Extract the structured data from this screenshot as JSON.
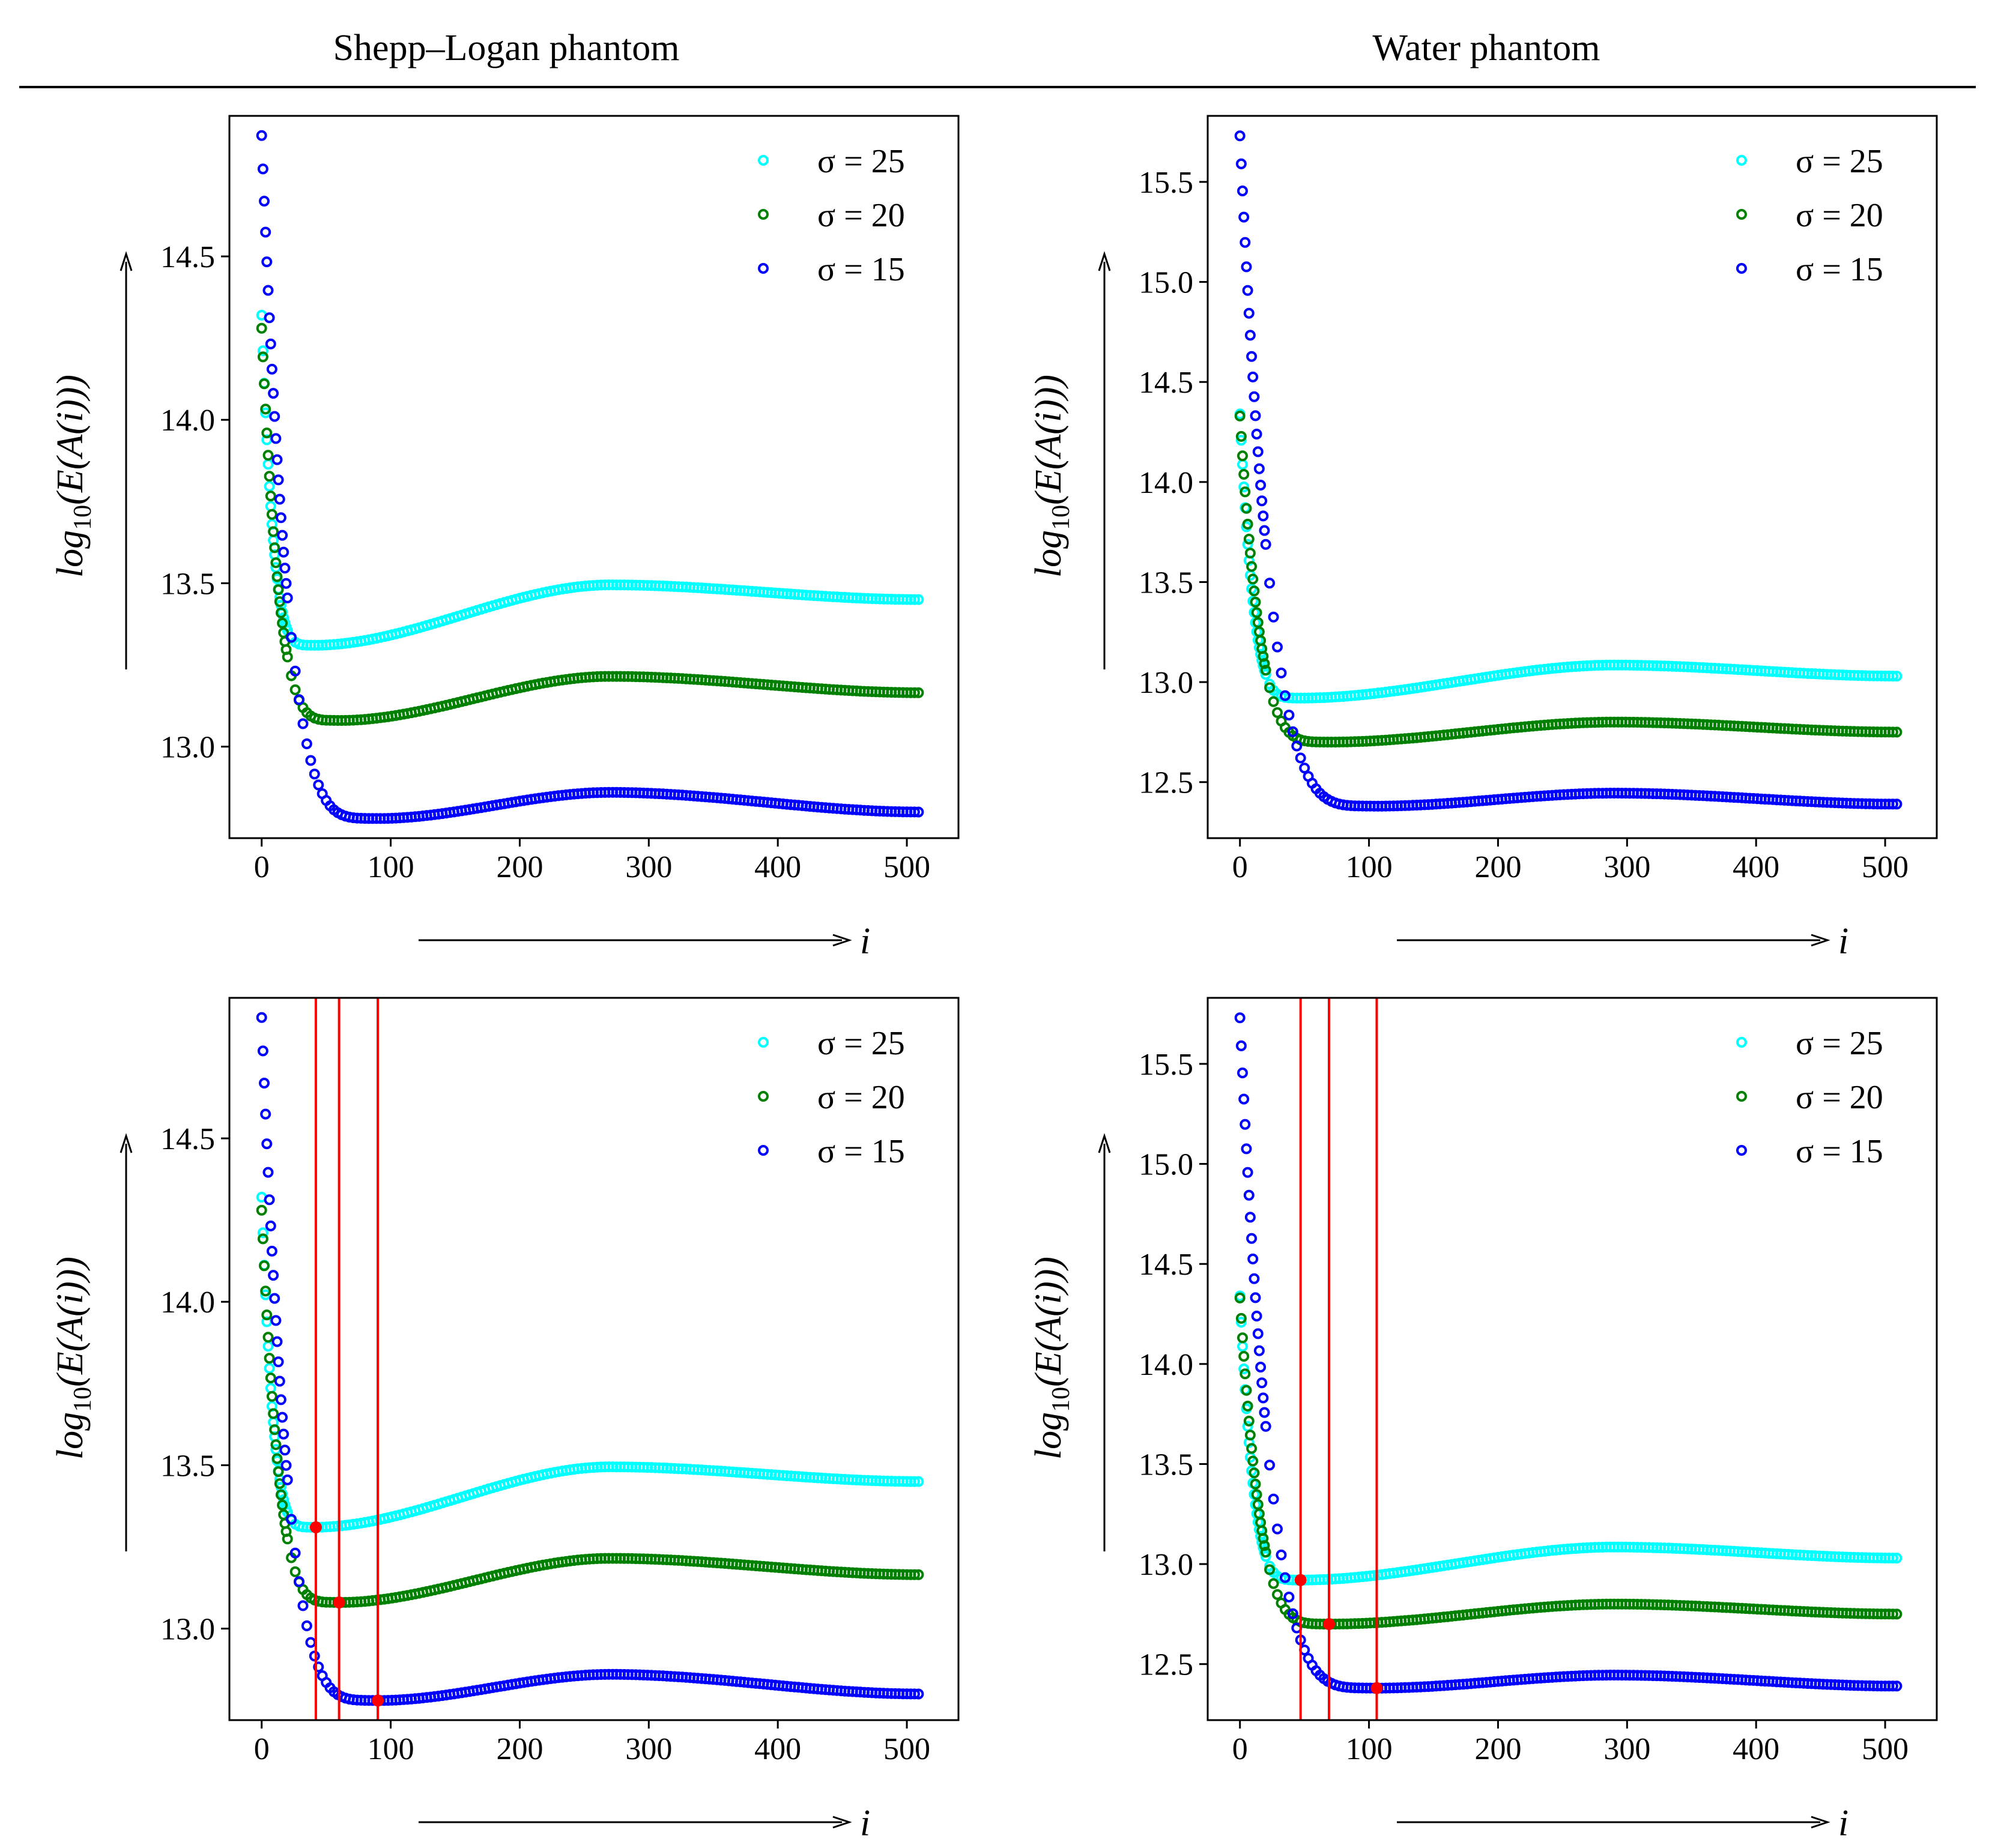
{
  "column_titles": [
    "Shepp–Logan phantom",
    "Water phantom"
  ],
  "axis_text": {
    "ylabel": "log",
    "ylabel_sub": "10",
    "ylabel_rest": "(E(A(i)))",
    "xlabel": "i"
  },
  "colors": {
    "sigma25": "#00ffff",
    "sigma20": "#008000",
    "sigma15": "#0000ff",
    "marker": "#ff0000"
  },
  "chart_data": [
    {
      "type": "scatter",
      "name": "shepp-logan-top",
      "column": "Shepp–Logan phantom",
      "xlim": [
        -25,
        540
      ],
      "ylim": [
        12.72,
        14.93
      ],
      "xticks": [
        0,
        100,
        200,
        300,
        400,
        500
      ],
      "yticks": [
        13.0,
        13.5,
        14.0,
        14.5
      ],
      "ytick_labels": [
        "13.0",
        "13.5",
        "14.0",
        "14.5"
      ],
      "series": [
        {
          "name": "σ=25",
          "label": "σ = 25",
          "color": "#00ffff",
          "start": 14.32,
          "x_min": 40,
          "y_min": 13.31,
          "x_peak": 270,
          "y_peak": 13.495,
          "y_end": 13.45
        },
        {
          "name": "σ=20",
          "label": "σ = 20",
          "color": "#008000",
          "start": 14.28,
          "x_min": 60,
          "y_min": 13.08,
          "x_peak": 270,
          "y_peak": 13.215,
          "y_end": 13.165
        },
        {
          "name": "σ=15",
          "label": "σ = 15",
          "color": "#0000ff",
          "start": 14.87,
          "x_min": 90,
          "y_min": 12.78,
          "x_peak": 270,
          "y_peak": 12.86,
          "y_end": 12.8
        }
      ],
      "vlines": []
    },
    {
      "type": "scatter",
      "name": "water-top",
      "column": "Water phantom",
      "xlim": [
        -25,
        540
      ],
      "ylim": [
        12.22,
        15.83
      ],
      "xticks": [
        0,
        100,
        200,
        300,
        400,
        500
      ],
      "yticks": [
        12.5,
        13.0,
        13.5,
        14.0,
        14.5,
        15.0,
        15.5
      ],
      "ytick_labels": [
        "12.5",
        "13.0",
        "13.5",
        "14.0",
        "14.5",
        "15.0",
        "15.5"
      ],
      "series": [
        {
          "name": "σ=25",
          "label": "σ = 25",
          "color": "#00ffff",
          "start": 14.34,
          "x_min": 47,
          "y_min": 12.92,
          "x_peak": 290,
          "y_peak": 13.085,
          "y_end": 13.03
        },
        {
          "name": "σ=20",
          "label": "σ = 20",
          "color": "#008000",
          "start": 14.33,
          "x_min": 70,
          "y_min": 12.7,
          "x_peak": 290,
          "y_peak": 12.8,
          "y_end": 12.75
        },
        {
          "name": "σ=15",
          "label": "σ = 15",
          "color": "#0000ff",
          "start": 15.73,
          "x_min": 106,
          "y_min": 12.38,
          "x_peak": 290,
          "y_peak": 12.445,
          "y_end": 12.39
        }
      ],
      "vlines": []
    },
    {
      "type": "scatter",
      "name": "shepp-logan-bottom",
      "column": "Shepp–Logan phantom",
      "xlim": [
        -25,
        540
      ],
      "ylim": [
        12.72,
        14.93
      ],
      "xticks": [
        0,
        100,
        200,
        300,
        400,
        500
      ],
      "yticks": [
        13.0,
        13.5,
        14.0,
        14.5
      ],
      "ytick_labels": [
        "13.0",
        "13.5",
        "14.0",
        "14.5"
      ],
      "series": [
        {
          "name": "σ=25",
          "label": "σ = 25",
          "color": "#00ffff",
          "start": 14.32,
          "x_min": 40,
          "y_min": 13.31,
          "x_peak": 270,
          "y_peak": 13.495,
          "y_end": 13.45
        },
        {
          "name": "σ=20",
          "label": "σ = 20",
          "color": "#008000",
          "start": 14.28,
          "x_min": 60,
          "y_min": 13.08,
          "x_peak": 270,
          "y_peak": 13.215,
          "y_end": 13.165
        },
        {
          "name": "σ=15",
          "label": "σ = 15",
          "color": "#0000ff",
          "start": 14.87,
          "x_min": 90,
          "y_min": 12.78,
          "x_peak": 270,
          "y_peak": 12.86,
          "y_end": 12.8
        }
      ],
      "vlines": [
        {
          "x": 42,
          "y": 13.31
        },
        {
          "x": 60,
          "y": 13.08
        },
        {
          "x": 90,
          "y": 12.78
        }
      ]
    },
    {
      "type": "scatter",
      "name": "water-bottom",
      "column": "Water phantom",
      "xlim": [
        -25,
        540
      ],
      "ylim": [
        12.22,
        15.83
      ],
      "xticks": [
        0,
        100,
        200,
        300,
        400,
        500
      ],
      "yticks": [
        12.5,
        13.0,
        13.5,
        14.0,
        14.5,
        15.0,
        15.5
      ],
      "ytick_labels": [
        "12.5",
        "13.0",
        "13.5",
        "14.0",
        "14.5",
        "15.0",
        "15.5"
      ],
      "series": [
        {
          "name": "σ=25",
          "label": "σ = 25",
          "color": "#00ffff",
          "start": 14.34,
          "x_min": 47,
          "y_min": 12.92,
          "x_peak": 290,
          "y_peak": 13.085,
          "y_end": 13.03
        },
        {
          "name": "σ=20",
          "label": "σ = 20",
          "color": "#008000",
          "start": 14.33,
          "x_min": 70,
          "y_min": 12.7,
          "x_peak": 290,
          "y_peak": 12.8,
          "y_end": 12.75
        },
        {
          "name": "σ=15",
          "label": "σ = 15",
          "color": "#0000ff",
          "start": 15.73,
          "x_min": 106,
          "y_min": 12.38,
          "x_peak": 290,
          "y_peak": 12.445,
          "y_end": 12.39
        }
      ],
      "vlines": [
        {
          "x": 47,
          "y": 12.92
        },
        {
          "x": 69,
          "y": 12.7
        },
        {
          "x": 106,
          "y": 12.38
        }
      ]
    }
  ]
}
